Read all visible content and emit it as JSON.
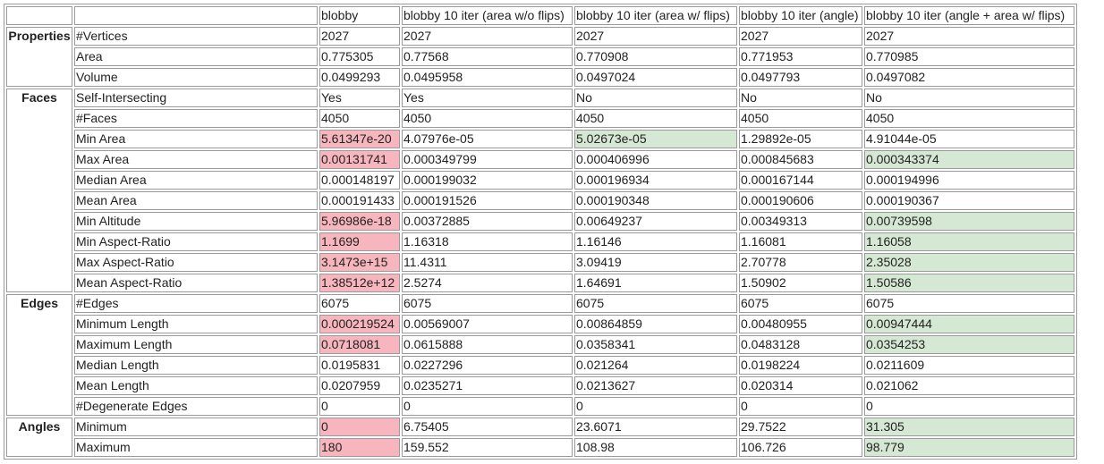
{
  "header": {
    "columns": [
      "blobby",
      "blobby 10 iter (area w/o flips)",
      "blobby 10 iter (area w/ flips)",
      "blobby 10 iter (angle)",
      "blobby 10 iter (angle + area w/ flips)"
    ]
  },
  "colors": {
    "bad": "#f7b6be",
    "good": "#d5e8d4"
  },
  "groups": [
    {
      "name": "Properties",
      "rows": [
        {
          "label": "#Vertices",
          "values": [
            "2027",
            "2027",
            "2027",
            "2027",
            "2027"
          ]
        },
        {
          "label": "Area",
          "values": [
            "0.775305",
            "0.77568",
            "0.770908",
            "0.771953",
            "0.770985"
          ]
        },
        {
          "label": "Volume",
          "values": [
            "0.0499293",
            "0.0495958",
            "0.0497024",
            "0.0497793",
            "0.0497082"
          ]
        }
      ]
    },
    {
      "name": "Faces",
      "rows": [
        {
          "label": "Self-Intersecting",
          "values": [
            "Yes",
            "Yes",
            "No",
            "No",
            "No"
          ]
        },
        {
          "label": "#Faces",
          "values": [
            "4050",
            "4050",
            "4050",
            "4050",
            "4050"
          ]
        },
        {
          "label": "Min Area",
          "values": [
            "5.61347e-20",
            "4.07976e-05",
            "5.02673e-05",
            "1.29892e-05",
            "4.91044e-05"
          ],
          "highlight": [
            "bad",
            null,
            "good",
            null,
            null
          ]
        },
        {
          "label": "Max Area",
          "values": [
            "0.00131741",
            "0.000349799",
            "0.000406996",
            "0.000845683",
            "0.000343374"
          ],
          "highlight": [
            "bad",
            null,
            null,
            null,
            "good"
          ]
        },
        {
          "label": "Median Area",
          "values": [
            "0.000148197",
            "0.000199032",
            "0.000196934",
            "0.000167144",
            "0.000194996"
          ]
        },
        {
          "label": "Mean Area",
          "values": [
            "0.000191433",
            "0.000191526",
            "0.000190348",
            "0.000190606",
            "0.000190367"
          ]
        },
        {
          "label": "Min Altitude",
          "values": [
            "5.96986e-18",
            "0.00372885",
            "0.00649237",
            "0.00349313",
            "0.00739598"
          ],
          "highlight": [
            "bad",
            null,
            null,
            null,
            "good"
          ]
        },
        {
          "label": "Min Aspect-Ratio",
          "values": [
            "1.1699",
            "1.16318",
            "1.16146",
            "1.16081",
            "1.16058"
          ],
          "highlight": [
            "bad",
            null,
            null,
            null,
            "good"
          ]
        },
        {
          "label": "Max Aspect-Ratio",
          "values": [
            "3.1473e+15",
            "11.4311",
            "3.09419",
            "2.70778",
            "2.35028"
          ],
          "highlight": [
            "bad",
            null,
            null,
            null,
            "good"
          ]
        },
        {
          "label": "Mean Aspect-Ratio",
          "values": [
            "1.38512e+12",
            "2.5274",
            "1.64691",
            "1.50902",
            "1.50586"
          ],
          "highlight": [
            "bad",
            null,
            null,
            null,
            "good"
          ]
        }
      ]
    },
    {
      "name": "Edges",
      "rows": [
        {
          "label": "#Edges",
          "values": [
            "6075",
            "6075",
            "6075",
            "6075",
            "6075"
          ]
        },
        {
          "label": "Minimum Length",
          "values": [
            "0.000219524",
            "0.00569007",
            "0.00864859",
            "0.00480955",
            "0.00947444"
          ],
          "highlight": [
            "bad",
            null,
            null,
            null,
            "good"
          ]
        },
        {
          "label": "Maximum Length",
          "values": [
            "0.0718081",
            "0.0615888",
            "0.0358341",
            "0.0483128",
            "0.0354253"
          ],
          "highlight": [
            "bad",
            null,
            null,
            null,
            "good"
          ]
        },
        {
          "label": "Median Length",
          "values": [
            "0.0195831",
            "0.0227296",
            "0.021264",
            "0.0198224",
            "0.0211609"
          ]
        },
        {
          "label": "Mean Length",
          "values": [
            "0.0207959",
            "0.0235271",
            "0.0213627",
            "0.020314",
            "0.021062"
          ]
        },
        {
          "label": "#Degenerate Edges",
          "values": [
            "0",
            "0",
            "0",
            "0",
            "0"
          ]
        }
      ]
    },
    {
      "name": "Angles",
      "rows": [
        {
          "label": "Minimum",
          "values": [
            "0",
            "6.75405",
            "23.6071",
            "29.7522",
            "31.305"
          ],
          "highlight": [
            "bad",
            null,
            null,
            null,
            "good"
          ]
        },
        {
          "label": "Maximum",
          "values": [
            "180",
            "159.552",
            "108.98",
            "106.726",
            "98.779"
          ],
          "highlight": [
            "bad",
            null,
            null,
            null,
            "good"
          ]
        }
      ]
    }
  ]
}
